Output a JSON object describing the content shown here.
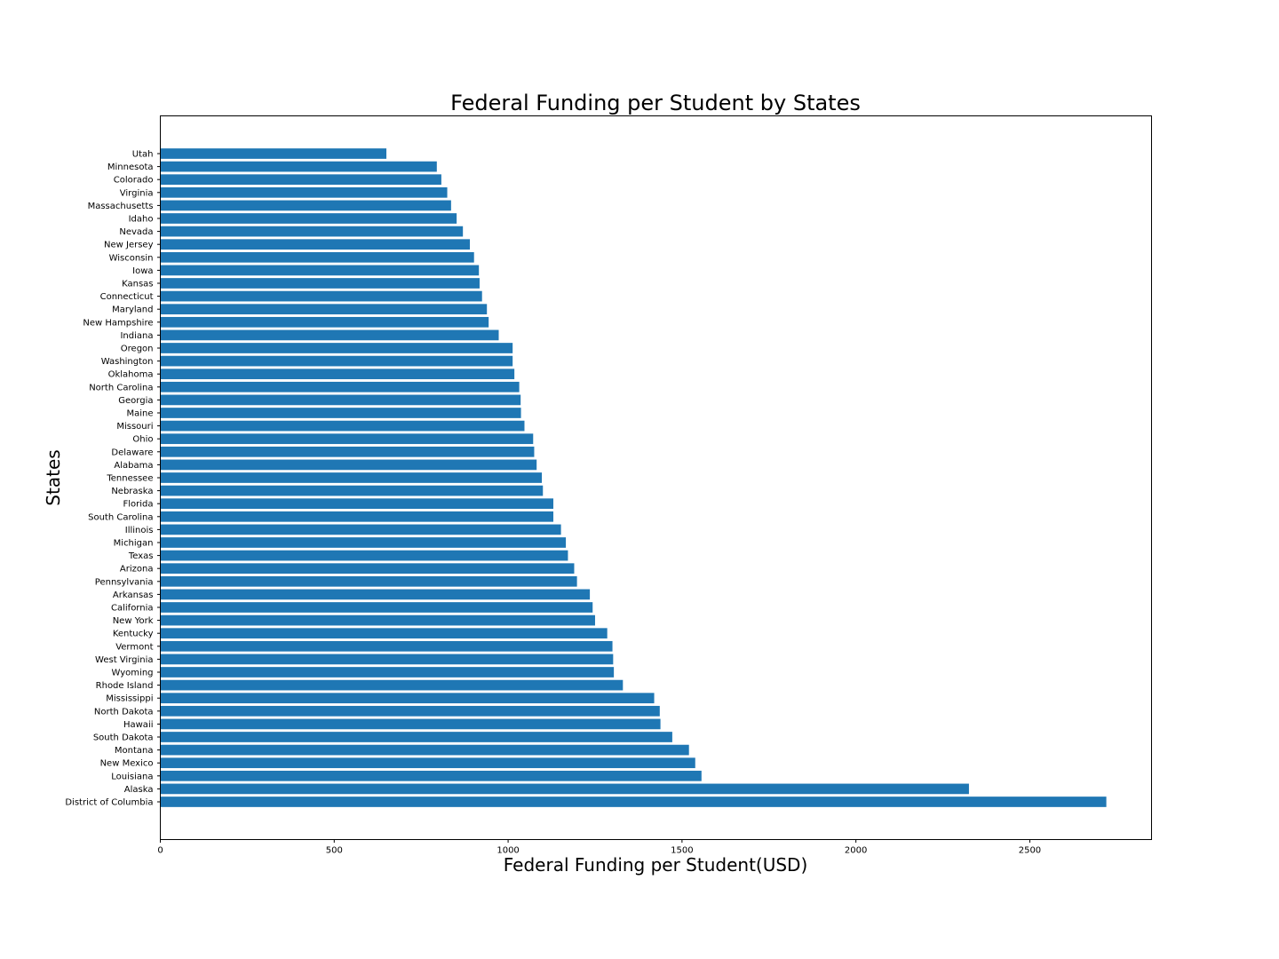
{
  "chart_data": {
    "type": "bar",
    "orientation": "horizontal",
    "title": "Federal Funding per Student by States",
    "xlabel": "Federal Funding per Student(USD)",
    "ylabel": "States",
    "xlim": [
      0,
      2850
    ],
    "xticks": [
      0,
      500,
      1000,
      1500,
      2000,
      2500
    ],
    "bar_color": "#1f77b4",
    "grid": false,
    "legend": "none",
    "categories": [
      "Utah",
      "Minnesota",
      "Colorado",
      "Virginia",
      "Massachusetts",
      "Idaho",
      "Nevada",
      "New Jersey",
      "Wisconsin",
      "Iowa",
      "Kansas",
      "Connecticut",
      "Maryland",
      "New Hampshire",
      "Indiana",
      "Oregon",
      "Washington",
      "Oklahoma",
      "North Carolina",
      "Georgia",
      "Maine",
      "Missouri",
      "Ohio",
      "Delaware",
      "Alabama",
      "Tennessee",
      "Nebraska",
      "Florida",
      "South Carolina",
      "Illinois",
      "Michigan",
      "Texas",
      "Arizona",
      "Pennsylvania",
      "Arkansas",
      "California",
      "New York",
      "Kentucky",
      "Vermont",
      "West Virginia",
      "Wyoming",
      "Rhode Island",
      "Mississippi",
      "North Dakota",
      "Hawaii",
      "South Dakota",
      "Montana",
      "New Mexico",
      "Louisiana",
      "Alaska",
      "District of Columbia"
    ],
    "values": [
      650,
      795,
      808,
      825,
      836,
      852,
      870,
      890,
      902,
      916,
      918,
      925,
      939,
      944,
      973,
      1013,
      1013,
      1018,
      1032,
      1036,
      1037,
      1047,
      1072,
      1075,
      1082,
      1097,
      1100,
      1130,
      1130,
      1152,
      1166,
      1172,
      1190,
      1198,
      1235,
      1243,
      1250,
      1285,
      1300,
      1302,
      1304,
      1330,
      1420,
      1436,
      1438,
      1472,
      1520,
      1538,
      1556,
      2325,
      2720
    ]
  }
}
